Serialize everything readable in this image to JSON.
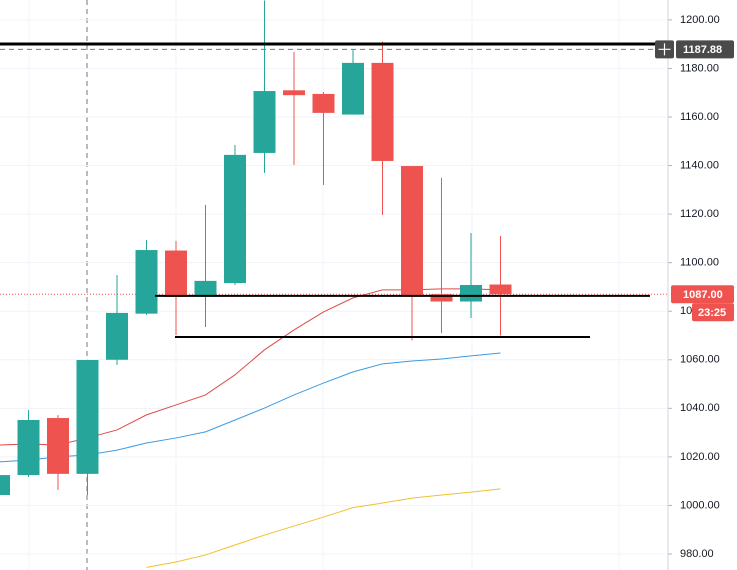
{
  "chart_data": {
    "type": "candlestick",
    "open": [
      1004.3,
      1012.5,
      1036,
      1013,
      1060,
      1079,
      1105,
      1086,
      1091.6,
      1145.2,
      1171,
      1169.5,
      1161,
      1182.3,
      1139.8,
      1087,
      1084,
      1091
    ],
    "high": [
      1013,
      1039.3,
      1037.2,
      1060,
      1094.9,
      1109.4,
      1109,
      1123.8,
      1148.5,
      1208,
      1186.8,
      1170.3,
      1187.6,
      1191,
      1139.8,
      1135,
      1112.2,
      1111
    ],
    "low": [
      1004.3,
      1011.7,
      1006.4,
      1004.3,
      1057.9,
      1078.5,
      1070.2,
      1073.5,
      1090.8,
      1137,
      1140.3,
      1132,
      1161,
      1119.7,
      1068,
      1071,
      1077.2,
      1070
    ],
    "close": [
      1012.5,
      1035.2,
      1013,
      1059.9,
      1079.3,
      1105.2,
      1085.9,
      1092.5,
      1144.4,
      1170.7,
      1169,
      1161.7,
      1182.3,
      1141.9,
      1086,
      1084,
      1090.8,
      1087
    ],
    "up_color": "#26a69a",
    "down_color": "#ef5350",
    "series": [
      {
        "color": "#e04848",
        "values": [
          1024.9,
          1025.3,
          1024.9,
          1027.8,
          1031.1,
          1037.3,
          1041.4,
          1045.5,
          1053.8,
          1064.1,
          1072.3,
          1079.7,
          1085.5,
          1088.8,
          1088.8,
          1089.2,
          1089.2,
          1088.8
        ]
      },
      {
        "color": "#3d9be0",
        "values": [
          1017.9,
          1018.7,
          1020,
          1020.8,
          1022.8,
          1025.7,
          1027.8,
          1030.3,
          1035.2,
          1040.1,
          1045.5,
          1050.4,
          1055,
          1058.3,
          1059.5,
          1060.3,
          1061.6,
          1062.8
        ]
      },
      {
        "color": "#f0c030",
        "values": [
          null,
          null,
          null,
          null,
          null,
          974.5,
          976.7,
          979.6,
          983.7,
          987.8,
          991.5,
          995.2,
          999.1,
          1001,
          1003,
          1004.3,
          1005.5,
          1006.8
        ]
      }
    ],
    "ylim": [
      973.4,
      1208.2
    ],
    "yticks": [
      {
        "value": 980,
        "label": "980.00"
      },
      {
        "value": 1000,
        "label": "1000.00"
      },
      {
        "value": 1020,
        "label": "1020.00"
      },
      {
        "value": 1040,
        "label": "1040.00"
      },
      {
        "value": 1060,
        "label": "1060.00"
      },
      {
        "value": 1080,
        "label": "1080.00"
      },
      {
        "value": 1100,
        "label": "1100.00"
      },
      {
        "value": 1120,
        "label": "1120.00"
      },
      {
        "value": 1140,
        "label": "1140.00"
      },
      {
        "value": 1160,
        "label": "1160.00"
      },
      {
        "value": 1180,
        "label": "1180.00"
      },
      {
        "value": 1200,
        "label": "1200.00"
      }
    ],
    "grid": true,
    "levels": [
      1190.1,
      1086.3,
      1069.4
    ],
    "crosshair": 1187.88,
    "last_price": 1087,
    "last_price_label": "1087.00",
    "countdown": "23:25"
  }
}
